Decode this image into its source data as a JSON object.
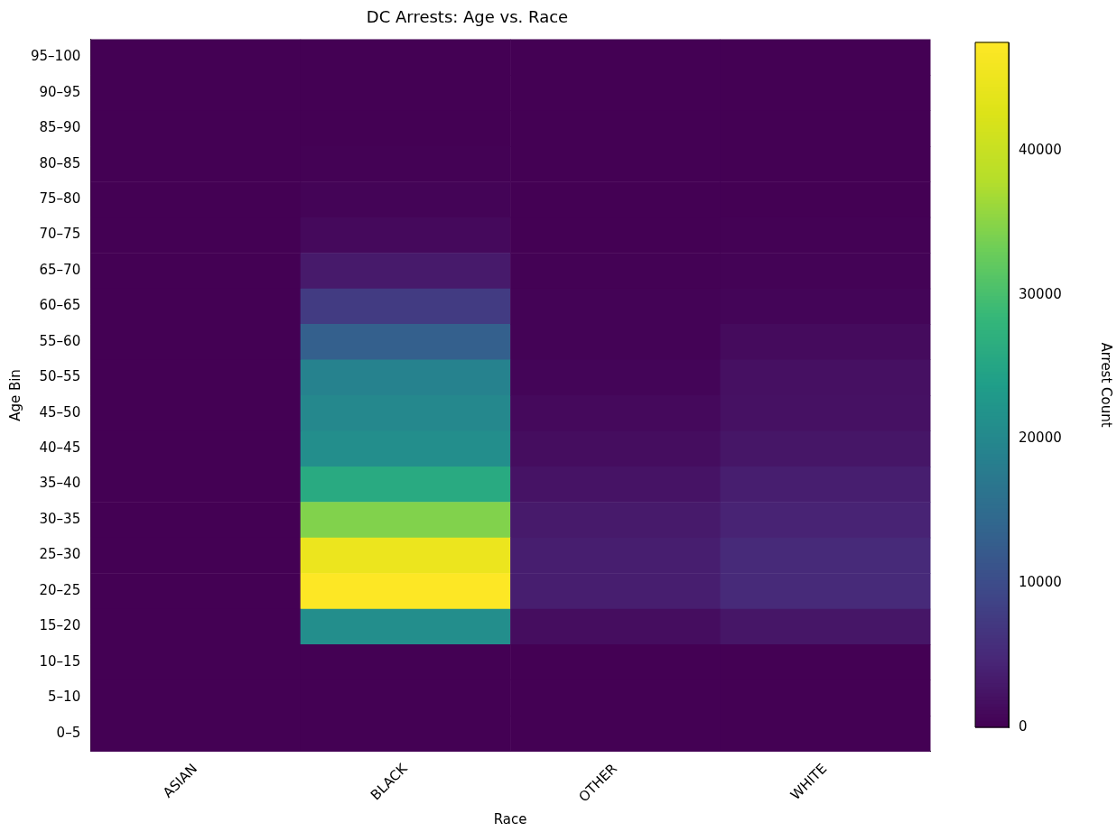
{
  "chart_data": {
    "type": "heatmap",
    "title": "DC Arrests: Age vs. Race",
    "xlabel": "Race",
    "ylabel": "Age Bin",
    "clabel": "Arrest Count",
    "categories": [
      "ASIAN",
      "BLACK",
      "OTHER",
      "WHITE"
    ],
    "y_categories": [
      "95–100",
      "90–95",
      "85–90",
      "80–85",
      "75–80",
      "70–75",
      "65–70",
      "60–65",
      "55–60",
      "50–55",
      "45–50",
      "40–45",
      "35–40",
      "30–35",
      "25–30",
      "20–25",
      "15–20",
      "10–15",
      "5–10",
      "0–5"
    ],
    "cells": [
      [
        0,
        0,
        0,
        0
      ],
      [
        0,
        0,
        0,
        0
      ],
      [
        0,
        0,
        0,
        0
      ],
      [
        0,
        100,
        0,
        0
      ],
      [
        0,
        400,
        0,
        0
      ],
      [
        0,
        1000,
        0,
        100
      ],
      [
        0,
        3000,
        100,
        300
      ],
      [
        0,
        7500,
        200,
        500
      ],
      [
        0,
        13000,
        300,
        1200
      ],
      [
        0,
        19000,
        500,
        1800
      ],
      [
        0,
        20000,
        1000,
        2000
      ],
      [
        0,
        21000,
        1500,
        2500
      ],
      [
        0,
        26000,
        2200,
        3500
      ],
      [
        0,
        34500,
        3000,
        4200
      ],
      [
        0,
        45000,
        3500,
        5000
      ],
      [
        0,
        47500,
        3500,
        5000
      ],
      [
        0,
        21000,
        1500,
        2500
      ],
      [
        0,
        0,
        0,
        0
      ],
      [
        0,
        0,
        0,
        0
      ],
      [
        0,
        0,
        0,
        0
      ]
    ],
    "clim": [
      0,
      47500
    ],
    "cticks": [
      0,
      10000,
      20000,
      30000,
      40000
    ]
  }
}
